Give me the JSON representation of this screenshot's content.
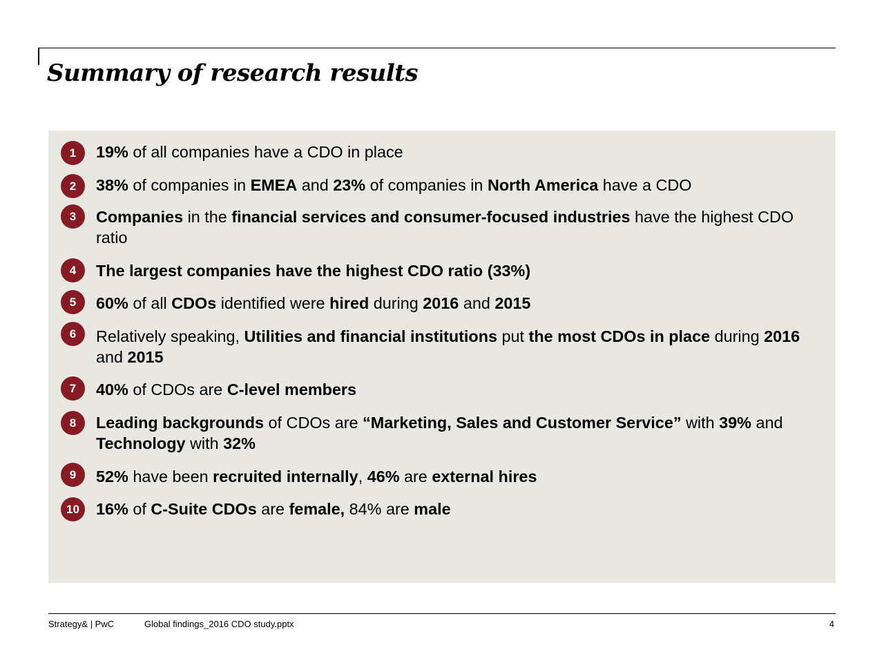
{
  "title": "Summary of research results",
  "accent_color": "#871b23",
  "panel_color": "#e8e7e2",
  "items": [
    {
      "number": "1",
      "segments": [
        {
          "t": "19%",
          "b": true
        },
        {
          "t": " of all companies have a CDO in place",
          "b": false
        }
      ]
    },
    {
      "number": "2",
      "segments": [
        {
          "t": "38%",
          "b": true
        },
        {
          "t": " of companies in ",
          "b": false
        },
        {
          "t": "EMEA",
          "b": true
        },
        {
          "t": " and ",
          "b": false
        },
        {
          "t": "23%",
          "b": true
        },
        {
          "t": " of companies in ",
          "b": false
        },
        {
          "t": "North America",
          "b": true
        },
        {
          "t": " have a CDO",
          "b": false
        }
      ]
    },
    {
      "number": "3",
      "segments": [
        {
          "t": "Companies",
          "b": true
        },
        {
          "t": " in the ",
          "b": false
        },
        {
          "t": "financial services and consumer-focused industries",
          "b": true
        },
        {
          "t": " have the highest CDO ratio",
          "b": false
        }
      ]
    },
    {
      "number": "4",
      "segments": [
        {
          "t": "The largest companies have the highest CDO ratio (33%)",
          "b": true
        }
      ]
    },
    {
      "number": "5",
      "segments": [
        {
          "t": "60%",
          "b": true
        },
        {
          "t": " of all ",
          "b": false
        },
        {
          "t": "CDOs",
          "b": true
        },
        {
          "t": " identified were ",
          "b": false
        },
        {
          "t": "hired",
          "b": true
        },
        {
          "t": " during ",
          "b": false
        },
        {
          "t": "2016",
          "b": true
        },
        {
          "t": " and ",
          "b": false
        },
        {
          "t": "2015",
          "b": true
        }
      ]
    },
    {
      "number": "6",
      "segments": [
        {
          "t": "Relatively speaking, ",
          "b": false
        },
        {
          "t": "Utilities and financial institutions",
          "b": true
        },
        {
          "t": " put ",
          "b": false
        },
        {
          "t": "the most CDOs in place",
          "b": true
        },
        {
          "t": " during ",
          "b": false
        },
        {
          "t": "2016",
          "b": true
        },
        {
          "t": " and ",
          "b": false
        },
        {
          "t": "2015",
          "b": true
        }
      ]
    },
    {
      "number": "7",
      "segments": [
        {
          "t": "40%",
          "b": true
        },
        {
          "t": " of CDOs are ",
          "b": false
        },
        {
          "t": "C-level members",
          "b": true
        }
      ]
    },
    {
      "number": "8",
      "segments": [
        {
          "t": "Leading backgrounds",
          "b": true
        },
        {
          "t": " of CDOs are ",
          "b": false
        },
        {
          "t": "“Marketing, Sales and Customer Service”",
          "b": true
        },
        {
          "t": " with ",
          "b": false
        },
        {
          "t": "39%",
          "b": true
        },
        {
          "t": " and ",
          "b": false
        },
        {
          "t": "Technology",
          "b": true
        },
        {
          "t": " with ",
          "b": false
        },
        {
          "t": "32%",
          "b": true
        }
      ]
    },
    {
      "number": "9",
      "segments": [
        {
          "t": "52%",
          "b": true
        },
        {
          "t": " have been ",
          "b": false
        },
        {
          "t": "recruited internally",
          "b": true
        },
        {
          "t": ", ",
          "b": false
        },
        {
          "t": "46%",
          "b": true
        },
        {
          "t": " are ",
          "b": false
        },
        {
          "t": "external hires",
          "b": true
        }
      ]
    },
    {
      "number": "10",
      "segments": [
        {
          "t": "16%",
          "b": true
        },
        {
          "t": " of ",
          "b": false
        },
        {
          "t": "C-Suite CDOs",
          "b": true
        },
        {
          "t": " are ",
          "b": false
        },
        {
          "t": "female,",
          "b": true
        },
        {
          "t": " 84% are ",
          "b": false
        },
        {
          "t": "male",
          "b": true
        }
      ]
    }
  ],
  "footer": {
    "source": "Strategy& | PwC",
    "file": "Global findings_2016 CDO study.pptx",
    "page": "4"
  }
}
